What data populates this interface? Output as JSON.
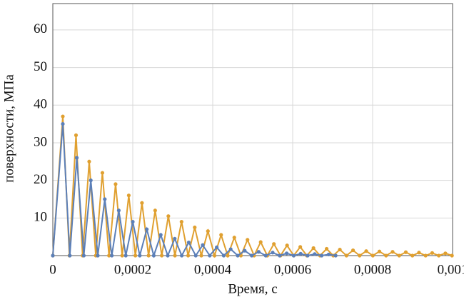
{
  "chart_data": {
    "type": "line",
    "x_label": "Время, с",
    "y_label": "поверхности, МПа",
    "xlim": [
      0,
      0.001
    ],
    "xticks": [
      0,
      {
        "value": 0.0002,
        "label": "0,0002"
      },
      {
        "value": 0.0004,
        "label": "0,0004"
      },
      {
        "value": 0.0006,
        "label": "0,0006"
      },
      {
        "value": 0.0008,
        "label": "0,0008"
      },
      {
        "value": 0.001,
        "label": "0,001"
      }
    ],
    "ylim": [
      0,
      67
    ],
    "yticks": [
      10,
      20,
      30,
      40,
      50,
      60
    ],
    "grid": true,
    "series": [
      {
        "color": "#e0a030",
        "x": [
          0,
          2.5e-05,
          4.15e-05,
          5.8e-05,
          7.45e-05,
          9.1e-05,
          0.0001075,
          0.000124,
          0.0001405,
          0.000157,
          0.0001735,
          0.00019,
          0.0002065,
          0.000223,
          0.0002395,
          0.000256,
          0.0002725,
          0.000289,
          0.0003055,
          0.000322,
          0.0003385,
          0.000355,
          0.0003715,
          0.000388,
          0.0004045,
          0.000421,
          0.0004375,
          0.000454,
          0.0004705,
          0.000487,
          0.0005035,
          0.00052,
          0.0005365,
          0.000553,
          0.0005695,
          0.000586,
          0.0006025,
          0.000619,
          0.0006355,
          0.000652,
          0.0006685,
          0.000685,
          0.0007015,
          0.000718,
          0.0007345,
          0.000751,
          0.0007675,
          0.000784,
          0.0008005,
          0.000817,
          0.0008335,
          0.00085,
          0.0008665,
          0.000883,
          0.0008995,
          0.000916,
          0.0009325,
          0.000949,
          0.0009655,
          0.000982,
          0.0009985
        ],
        "values": [
          0,
          37,
          0,
          32,
          0,
          25,
          0,
          22,
          0,
          19,
          0,
          16,
          0,
          14,
          0,
          12,
          0,
          10.5,
          0,
          9,
          0,
          7.5,
          0,
          6.5,
          0,
          5.5,
          0,
          4.8,
          0,
          4.2,
          0,
          3.6,
          0,
          3.1,
          0,
          2.7,
          0,
          2.3,
          0,
          2,
          0,
          1.8,
          0,
          1.6,
          0,
          1.4,
          0,
          1.2,
          0,
          1.1,
          0,
          1,
          0,
          0.9,
          0,
          0.8,
          0,
          0.7,
          0,
          0.6,
          0
        ]
      },
      {
        "color": "#5b7fb8",
        "x": [
          0,
          2.5e-05,
          4.25e-05,
          6e-05,
          7.75e-05,
          9.5e-05,
          0.0001125,
          0.00013,
          0.0001475,
          0.000165,
          0.0001825,
          0.0002,
          0.0002175,
          0.000235,
          0.0002525,
          0.00027,
          0.0002875,
          0.000305,
          0.0003225,
          0.00034,
          0.0003575,
          0.000375,
          0.0003925,
          0.00041,
          0.0004275,
          0.000445,
          0.0004625,
          0.00048,
          0.0004975,
          0.000515,
          0.0005325,
          0.00055,
          0.0005675,
          0.000585,
          0.0006025,
          0.00062,
          0.0006375,
          0.000655,
          0.0006725,
          0.00069,
          0.0007075
        ],
        "values": [
          0,
          35,
          0,
          26,
          0,
          20,
          0,
          15,
          0,
          12,
          0,
          9,
          0,
          7,
          0,
          5.5,
          0,
          4.5,
          0,
          3.5,
          0,
          2.8,
          0,
          2.2,
          0,
          1.7,
          0,
          1.3,
          0,
          1,
          0,
          0.8,
          0,
          0.6,
          0,
          0.5,
          0,
          0.4,
          0,
          0.3,
          0
        ]
      }
    ]
  }
}
